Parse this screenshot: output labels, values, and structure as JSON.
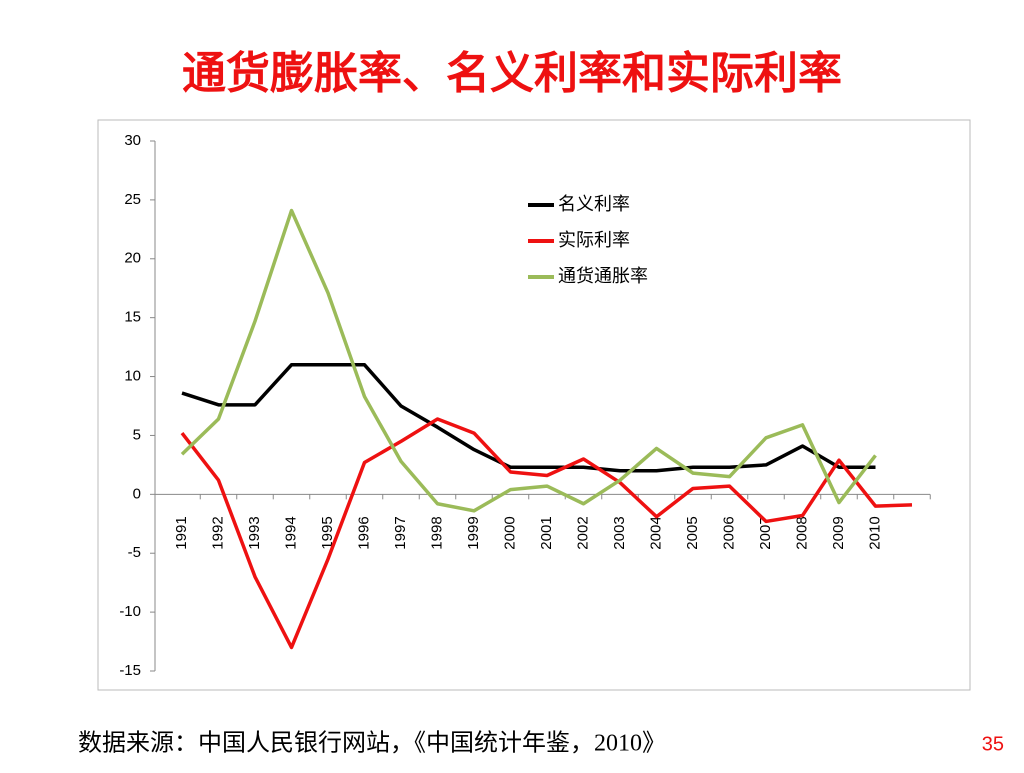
{
  "title": "通货膨胀率、名义利率和实际利率",
  "chart_data": {
    "type": "line",
    "categories": [
      "1991",
      "1992",
      "1993",
      "1994",
      "1995",
      "1996",
      "1997",
      "1998",
      "1999",
      "2000",
      "2001",
      "2002",
      "2003",
      "2004",
      "2005",
      "2006",
      "2007",
      "2008",
      "2009",
      "2010",
      null
    ],
    "series": [
      {
        "name": "名义利率",
        "color": "#000000",
        "values": [
          8.6,
          7.6,
          7.6,
          11,
          11,
          11,
          7.5,
          5.7,
          3.8,
          2.3,
          2.3,
          2.3,
          2.0,
          2.0,
          2.3,
          2.3,
          2.5,
          4.1,
          2.3,
          2.3,
          null
        ]
      },
      {
        "name": "实际利率",
        "color": "#ee1111",
        "values": [
          5.2,
          1.2,
          -7.0,
          -13.0,
          -5.5,
          2.7,
          4.5,
          6.4,
          5.2,
          1.9,
          1.6,
          3.0,
          1.0,
          -1.9,
          0.5,
          0.7,
          -2.3,
          -1.8,
          2.9,
          -1.0,
          -0.9
        ]
      },
      {
        "name": "通货通胀率",
        "color": "#9bbb59",
        "values": [
          3.4,
          6.4,
          14.7,
          24.1,
          17.1,
          8.3,
          2.8,
          -0.8,
          -1.4,
          0.4,
          0.7,
          -0.8,
          1.2,
          3.9,
          1.8,
          1.5,
          4.8,
          5.9,
          -0.7,
          3.3,
          null
        ]
      }
    ],
    "ylim": [
      -15,
      30
    ],
    "yticks": [
      -15,
      -10,
      -5,
      0,
      5,
      10,
      15,
      20,
      25,
      30
    ],
    "legend": "upper right"
  },
  "footer": {
    "source": "数据来源：中国人民银行网站，《中国统计年鉴，2010》",
    "page": "35"
  }
}
